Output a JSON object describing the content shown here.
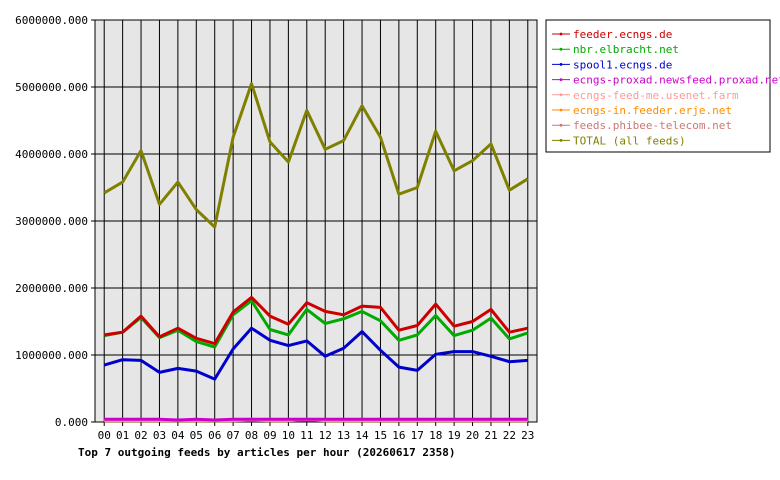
{
  "chart_data": {
    "type": "line",
    "title": "Top 7 outgoing feeds by articles per hour (20260617 2358)",
    "xlabel": "",
    "ylabel": "",
    "grid": true,
    "legend_position": "right",
    "ylim": [
      0,
      6000000
    ],
    "yticks": [
      "0.000",
      "1000000.000",
      "2000000.000",
      "3000000.000",
      "4000000.000",
      "5000000.000",
      "6000000.000"
    ],
    "categories": [
      "00",
      "01",
      "02",
      "03",
      "04",
      "05",
      "06",
      "07",
      "08",
      "09",
      "10",
      "11",
      "12",
      "13",
      "14",
      "15",
      "16",
      "17",
      "18",
      "19",
      "20",
      "21",
      "22",
      "23"
    ],
    "series": [
      {
        "name": "feeder.ecngs.de",
        "color": "#cc0000",
        "values": [
          1300000,
          1340000,
          1580000,
          1270000,
          1400000,
          1250000,
          1170000,
          1640000,
          1860000,
          1580000,
          1460000,
          1780000,
          1650000,
          1600000,
          1730000,
          1710000,
          1370000,
          1440000,
          1760000,
          1430000,
          1500000,
          1680000,
          1340000,
          1400000
        ]
      },
      {
        "name": "nbr.elbracht.net",
        "color": "#00aa00",
        "values": [
          1290000,
          1340000,
          1560000,
          1260000,
          1370000,
          1200000,
          1120000,
          1600000,
          1810000,
          1380000,
          1300000,
          1680000,
          1470000,
          1540000,
          1650000,
          1510000,
          1220000,
          1300000,
          1590000,
          1290000,
          1370000,
          1550000,
          1240000,
          1330000
        ]
      },
      {
        "name": "spool1.ecngs.de",
        "color": "#0000cc",
        "values": [
          850000,
          930000,
          920000,
          740000,
          800000,
          760000,
          640000,
          1090000,
          1400000,
          1220000,
          1140000,
          1210000,
          980000,
          1100000,
          1350000,
          1070000,
          820000,
          770000,
          1010000,
          1050000,
          1050000,
          980000,
          900000,
          920000
        ]
      },
      {
        "name": "ecngs-proxad.newsfeed.proxad.net",
        "color": "#cc00cc",
        "values": [
          40000,
          40000,
          40000,
          40000,
          30000,
          40000,
          30000,
          40000,
          40000,
          40000,
          40000,
          40000,
          40000,
          40000,
          40000,
          40000,
          40000,
          40000,
          40000,
          40000,
          40000,
          40000,
          40000,
          40000
        ]
      },
      {
        "name": "ecngs-feed-me.usenet.farm",
        "color": "#ff9999",
        "values": [
          30000,
          30000,
          30000,
          30000,
          30000,
          30000,
          30000,
          30000,
          40000,
          30000,
          30000,
          40000,
          30000,
          30000,
          30000,
          30000,
          30000,
          30000,
          30000,
          30000,
          30000,
          30000,
          30000,
          30000
        ]
      },
      {
        "name": "ecngs-in.feeder.erje.net",
        "color": "#ff8c00",
        "values": [
          20000,
          20000,
          20000,
          20000,
          20000,
          20000,
          20000,
          20000,
          30000,
          20000,
          20000,
          40000,
          20000,
          20000,
          20000,
          20000,
          20000,
          20000,
          20000,
          20000,
          20000,
          20000,
          20000,
          20000
        ]
      },
      {
        "name": "feeds.phibee-telecom.net",
        "color": "#cc7777",
        "values": [
          30000,
          30000,
          30000,
          30000,
          30000,
          30000,
          30000,
          30000,
          30000,
          30000,
          30000,
          30000,
          30000,
          30000,
          30000,
          30000,
          30000,
          30000,
          30000,
          30000,
          30000,
          30000,
          30000,
          30000
        ]
      },
      {
        "name": "TOTAL (all feeds)",
        "color": "#808000",
        "values": [
          3420000,
          3580000,
          4050000,
          3250000,
          3580000,
          3170000,
          2910000,
          4250000,
          5050000,
          4180000,
          3880000,
          4650000,
          4070000,
          4200000,
          4720000,
          4250000,
          3400000,
          3500000,
          4340000,
          3750000,
          3900000,
          4150000,
          3460000,
          3630000
        ]
      }
    ]
  }
}
